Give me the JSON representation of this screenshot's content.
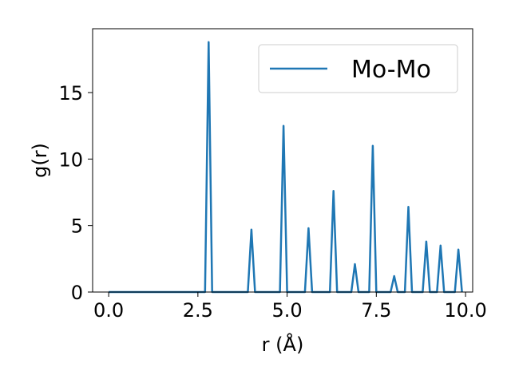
{
  "chart_data": {
    "type": "line",
    "xlabel": "r (Å)",
    "ylabel": "g(r)",
    "xlim": [
      -0.45,
      10.2
    ],
    "ylim": [
      0,
      19.8
    ],
    "xticks": [
      "0.0",
      "2.5",
      "5.0",
      "7.5",
      "10.0"
    ],
    "xtick_values": [
      0,
      2.5,
      5.0,
      7.5,
      10.0
    ],
    "yticks": [
      "0",
      "5",
      "10",
      "15"
    ],
    "ytick_values": [
      0,
      5,
      10,
      15
    ],
    "legend_position": "top-right",
    "grid": false,
    "series": [
      {
        "name": "Mo-Mo",
        "color": "#1f77b4",
        "x": [
          0.0,
          2.7,
          2.8,
          2.9,
          3.9,
          4.0,
          4.1,
          4.8,
          4.9,
          5.0,
          5.5,
          5.6,
          5.7,
          6.2,
          6.3,
          6.4,
          6.8,
          6.9,
          7.0,
          7.3,
          7.4,
          7.5,
          7.9,
          8.0,
          8.1,
          8.3,
          8.4,
          8.5,
          8.8,
          8.9,
          9.0,
          9.2,
          9.3,
          9.4,
          9.7,
          9.8,
          9.9
        ],
        "y": [
          0.0,
          0.0,
          18.8,
          0.0,
          0.0,
          4.7,
          0.0,
          0.0,
          12.5,
          0.0,
          0.0,
          4.8,
          0.0,
          0.0,
          7.6,
          0.0,
          0.0,
          2.1,
          0.0,
          0.0,
          11.0,
          0.0,
          0.0,
          1.2,
          0.0,
          0.0,
          6.4,
          0.0,
          0.0,
          3.8,
          0.0,
          0.0,
          3.5,
          0.0,
          0.0,
          3.2,
          0.0
        ]
      }
    ]
  }
}
